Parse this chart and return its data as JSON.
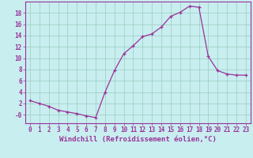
{
  "x": [
    0,
    1,
    2,
    3,
    4,
    5,
    6,
    7,
    8,
    9,
    10,
    11,
    12,
    13,
    14,
    15,
    16,
    17,
    18,
    19,
    20,
    21,
    22,
    23
  ],
  "y": [
    2.5,
    2.0,
    1.5,
    0.8,
    0.5,
    0.2,
    -0.2,
    -0.5,
    4.0,
    7.8,
    10.8,
    12.2,
    13.8,
    14.3,
    15.5,
    17.4,
    18.1,
    19.2,
    19.0,
    10.3,
    7.8,
    7.2,
    7.0,
    7.0
  ],
  "line_color": "#993399",
  "marker": "+",
  "background_color": "#c8eef0",
  "grid_color": "#99ccbb",
  "xlabel": "Windchill (Refroidissement éolien,°C)",
  "xlabel_fontsize": 6.5,
  "tick_fontsize": 5.5,
  "ylim": [
    -1.5,
    20
  ],
  "xlim": [
    -0.5,
    23.5
  ],
  "yticks": [
    0,
    2,
    4,
    6,
    8,
    10,
    12,
    14,
    16,
    18
  ],
  "ytick_labels": [
    "-0",
    "2",
    "4",
    "6",
    "8",
    "10",
    "12",
    "14",
    "16",
    "18"
  ],
  "xticks": [
    0,
    1,
    2,
    3,
    4,
    5,
    6,
    7,
    8,
    9,
    10,
    11,
    12,
    13,
    14,
    15,
    16,
    17,
    18,
    19,
    20,
    21,
    22,
    23
  ],
  "xtick_labels": [
    "0",
    "1",
    "2",
    "3",
    "4",
    "5",
    "6",
    "7",
    "8",
    "9",
    "10",
    "11",
    "12",
    "13",
    "14",
    "15",
    "16",
    "17",
    "18",
    "19",
    "20",
    "21",
    "22",
    "23"
  ]
}
